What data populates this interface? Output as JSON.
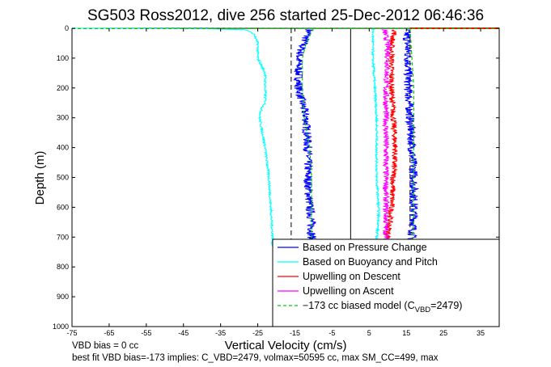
{
  "chart_data": {
    "type": "line",
    "title": "SG503 Ross2012, dive 256 started 25-Dec-2012 06:46:36",
    "xlabel": "Vertical Velocity (cm/s)",
    "ylabel": "Depth (m)",
    "xlim": [
      -75,
      40
    ],
    "ylim": [
      1000,
      0
    ],
    "y_reversed": true,
    "xticks": [
      -75,
      -65,
      -55,
      -45,
      -35,
      -25,
      -15,
      -5,
      5,
      15,
      25,
      35
    ],
    "yticks": [
      0,
      100,
      200,
      300,
      400,
      500,
      600,
      700,
      800,
      900,
      1000
    ],
    "reference_lines": [
      {
        "x": 0,
        "style": "solid",
        "color": "#000000"
      },
      {
        "x": -16,
        "style": "dashed",
        "color": "#000000"
      },
      {
        "x": 16,
        "style": "dashed",
        "color": "#000000"
      }
    ],
    "series": [
      {
        "name": "Based on Pressure Change",
        "color": "#0000ff",
        "noise": 1.2,
        "pass_a": {
          "x": [
            -11,
            -13,
            -14,
            -14,
            -12,
            -11.5,
            -11.5,
            -11,
            -10.5,
            -10.5,
            -10.5,
            -11
          ],
          "y": [
            5,
            60,
            100,
            200,
            300,
            400,
            500,
            600,
            650,
            700,
            720,
            730
          ]
        },
        "pass_b": {
          "x": [
            15,
            15.5,
            15.5,
            16,
            16.5,
            17,
            17,
            17,
            16.5,
            16,
            16
          ],
          "y": [
            5,
            100,
            200,
            300,
            400,
            500,
            600,
            650,
            700,
            720,
            730
          ]
        }
      },
      {
        "name": "Based on Buoyancy and Pitch",
        "color": "#00ffff",
        "noise": 0.3,
        "pass_a": {
          "x": [
            -75,
            -40,
            -28,
            -26,
            -25,
            -25,
            -23,
            -23,
            -24,
            -24.5,
            -23,
            -22,
            -21.5,
            -21,
            -21
          ],
          "y": [
            0,
            1,
            5,
            20,
            50,
            100,
            150,
            250,
            270,
            300,
            400,
            500,
            600,
            700,
            730
          ]
        },
        "pass_b": {
          "x": [
            6,
            6,
            6.5,
            7,
            7,
            7,
            7.5,
            7.5,
            7,
            7
          ],
          "y": [
            0,
            100,
            200,
            300,
            400,
            500,
            600,
            650,
            700,
            730
          ]
        }
      },
      {
        "name": "Upwelling on Descent",
        "color": "#ff0000",
        "noise": 0.8,
        "pass_a": {
          "x": [
            12,
            11,
            11,
            11,
            12,
            11.5,
            11,
            10.5,
            10,
            10
          ],
          "y": [
            5,
            50,
            100,
            200,
            400,
            500,
            600,
            650,
            700,
            730
          ]
        },
        "spike": {
          "x": [
            16,
            40
          ],
          "y": [
            0,
            0
          ]
        }
      },
      {
        "name": "Upwelling on Ascent",
        "color": "#ff00ff",
        "noise": 0.8,
        "pass_a": {
          "x": [
            9,
            10,
            10,
            9.5,
            9.5,
            9.5,
            9.5,
            9.5,
            9.5,
            9.5
          ],
          "y": [
            5,
            50,
            100,
            200,
            300,
            400,
            500,
            600,
            700,
            730
          ]
        }
      },
      {
        "name": "−173 cc biased model (C_VBD=2479)",
        "color": "#00cc00",
        "noise": 0,
        "pass_a": {
          "x": [
            -10,
            -12,
            -13,
            -13,
            -12.5,
            -11,
            -10.5,
            -10.5,
            -10.5,
            -10.5
          ],
          "y": [
            0,
            50,
            100,
            200,
            300,
            400,
            500,
            600,
            700,
            730
          ]
        },
        "pass_b": {
          "x": [
            16,
            16.5,
            17,
            17,
            17,
            17,
            17,
            17,
            16.5,
            16.5
          ],
          "y": [
            0,
            100,
            200,
            300,
            400,
            500,
            600,
            650,
            700,
            730
          ]
        },
        "surface": {
          "x": [
            -75,
            40
          ],
          "y": [
            1,
            1
          ]
        }
      }
    ],
    "legend": {
      "placement": "bottom-right",
      "entries": [
        {
          "label": "Based on Pressure Change",
          "color": "#0000ff",
          "dash": false
        },
        {
          "label": "Based on Buoyancy and Pitch",
          "color": "#00ffff",
          "dash": false
        },
        {
          "label": "Upwelling on Descent",
          "color": "#ff0000",
          "dash": false
        },
        {
          "label": "Upwelling on Ascent",
          "color": "#ff00ff",
          "dash": false
        },
        {
          "label_prefix": "−173 cc biased model (C",
          "label_sub": "VBD",
          "label_suffix": "=2479)",
          "color": "#00cc00",
          "dash": true
        }
      ]
    },
    "footnotes": [
      "VBD bias = 0 cc",
      "best fit VBD bias=-173 implies: C_VBD=2479, volmax=50595 cc, max SM_CC=499, max"
    ]
  }
}
